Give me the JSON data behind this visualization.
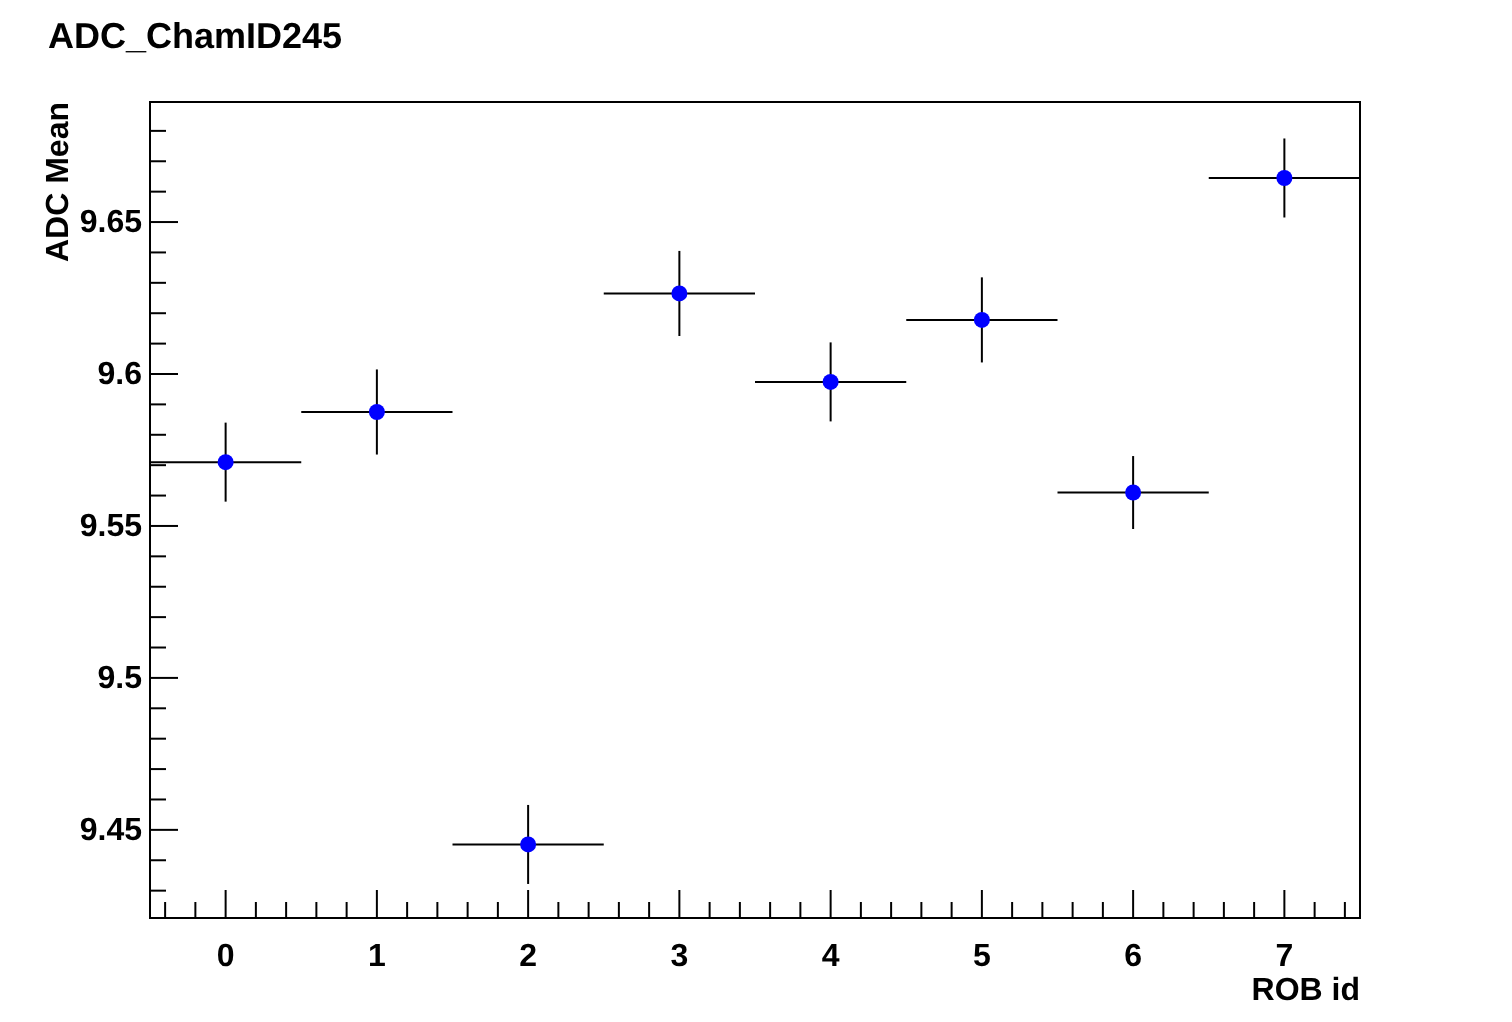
{
  "chart_data": {
    "type": "scatter",
    "title": "ADC_ChamID245",
    "xlabel": "ROB id",
    "ylabel": "ADC Mean",
    "x": [
      0,
      1,
      2,
      3,
      4,
      5,
      6,
      7
    ],
    "series": [
      {
        "color": "#0000ff",
        "values": [
          9.571,
          9.5875,
          9.4452,
          9.6265,
          9.5974,
          9.6178,
          9.561,
          9.6645
        ],
        "errors": [
          0.013,
          0.014,
          0.013,
          0.014,
          0.013,
          0.014,
          0.012,
          0.013
        ],
        "xerrors": [
          0.5,
          0.5,
          0.5,
          0.5,
          0.5,
          0.5,
          0.5,
          0.5
        ]
      }
    ],
    "marker": "circle",
    "grid": false,
    "xlim": [
      -0.5,
      7.5
    ],
    "ylim": [
      9.421,
      9.6895
    ],
    "xticks": [
      {
        "value": -0.4,
        "label": null
      },
      {
        "value": -0.2,
        "label": null
      },
      0,
      {
        "value": 0.2,
        "label": null
      },
      {
        "value": 0.4,
        "label": null
      },
      {
        "value": 0.6,
        "label": null
      },
      {
        "value": 0.8,
        "label": null
      },
      1,
      {
        "value": 1.2,
        "label": null
      },
      {
        "value": 1.4,
        "label": null
      },
      {
        "value": 1.6,
        "label": null
      },
      {
        "value": 1.8,
        "label": null
      },
      2,
      {
        "value": 2.2,
        "label": null
      },
      {
        "value": 2.4,
        "label": null
      },
      {
        "value": 2.6,
        "label": null
      },
      {
        "value": 2.8,
        "label": null
      },
      3,
      {
        "value": 3.2,
        "label": null
      },
      {
        "value": 3.4,
        "label": null
      },
      {
        "value": 3.6,
        "label": null
      },
      {
        "value": 3.8,
        "label": null
      },
      4,
      {
        "value": 4.2,
        "label": null
      },
      {
        "value": 4.4,
        "label": null
      },
      {
        "value": 4.6,
        "label": null
      },
      {
        "value": 4.8,
        "label": null
      },
      5,
      {
        "value": 5.2,
        "label": null
      },
      {
        "value": 5.4,
        "label": null
      },
      {
        "value": 5.6,
        "label": null
      },
      {
        "value": 5.8,
        "label": null
      },
      6,
      {
        "value": 6.2,
        "label": null
      },
      {
        "value": 6.4,
        "label": null
      },
      {
        "value": 6.6,
        "label": null
      },
      {
        "value": 6.8,
        "label": null
      },
      7,
      {
        "value": 7.2,
        "label": null
      },
      {
        "value": 7.4,
        "label": null
      }
    ],
    "yticks": [
      {
        "value": 9.43,
        "label": null
      },
      {
        "value": 9.44,
        "label": null
      },
      9.45,
      {
        "value": 9.46,
        "label": null
      },
      {
        "value": 9.47,
        "label": null
      },
      {
        "value": 9.48,
        "label": null
      },
      {
        "value": 9.49,
        "label": null
      },
      9.5,
      {
        "value": 9.51,
        "label": null
      },
      {
        "value": 9.52,
        "label": null
      },
      {
        "value": 9.53,
        "label": null
      },
      {
        "value": 9.54,
        "label": null
      },
      9.55,
      {
        "value": 9.56,
        "label": null
      },
      {
        "value": 9.57,
        "label": null
      },
      {
        "value": 9.58,
        "label": null
      },
      {
        "value": 9.59,
        "label": null
      },
      9.6,
      {
        "value": 9.61,
        "label": null
      },
      {
        "value": 9.62,
        "label": null
      },
      {
        "value": 9.63,
        "label": null
      },
      {
        "value": 9.64,
        "label": null
      },
      9.65,
      {
        "value": 9.66,
        "label": null
      },
      {
        "value": 9.67,
        "label": null
      },
      {
        "value": 9.68,
        "label": null
      }
    ]
  }
}
